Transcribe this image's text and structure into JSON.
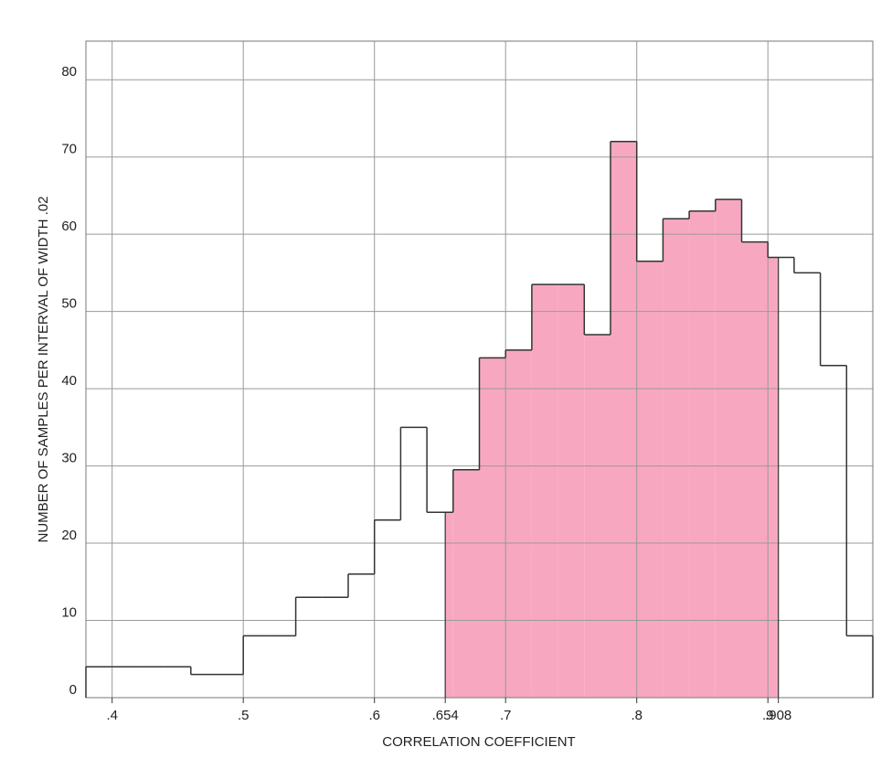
{
  "chart_data": {
    "type": "histogram",
    "xlabel": "CORRELATION COEFFICIENT",
    "ylabel": "NUMBER OF SAMPLES PER INTERVAL OF WIDTH .02",
    "bins": [
      0.38,
      0.4,
      0.42,
      0.44,
      0.46,
      0.48,
      0.5,
      0.52,
      0.54,
      0.56,
      0.58,
      0.6,
      0.62,
      0.64,
      0.66,
      0.68,
      0.7,
      0.72,
      0.74,
      0.76,
      0.78,
      0.8,
      0.82,
      0.84,
      0.86,
      0.88,
      0.9,
      0.92,
      0.94,
      0.96,
      0.98
    ],
    "values": [
      4,
      4,
      4,
      4,
      3,
      3,
      8,
      8,
      13,
      13,
      16,
      23,
      35,
      24,
      29.5,
      44,
      45,
      53.5,
      53.5,
      47,
      72,
      56.5,
      62,
      63,
      64.5,
      59,
      57,
      55,
      43,
      8
    ],
    "shade": [
      0.654,
      0.908
    ],
    "shade_color": "#f7a8c0",
    "color": "#333333",
    "xlim": [
      0.38,
      0.98
    ],
    "ylim": [
      0,
      85
    ],
    "xticks": [
      {
        "value": 0.4,
        "label": ".4"
      },
      {
        "value": 0.5,
        "label": ".5"
      },
      {
        "value": 0.6,
        "label": ".6"
      },
      {
        "value": 0.654,
        "label": ".654"
      },
      {
        "value": 0.7,
        "label": ".7"
      },
      {
        "value": 0.8,
        "label": ".8"
      },
      {
        "value": 0.9,
        "label": ".9"
      },
      {
        "value": 0.908,
        "label": ".908"
      }
    ],
    "grid_xticks": [
      0.4,
      0.5,
      0.6,
      0.7,
      0.8,
      0.9
    ],
    "yticks": [
      0,
      10,
      20,
      30,
      40,
      50,
      60,
      70,
      80
    ],
    "grid": true
  }
}
